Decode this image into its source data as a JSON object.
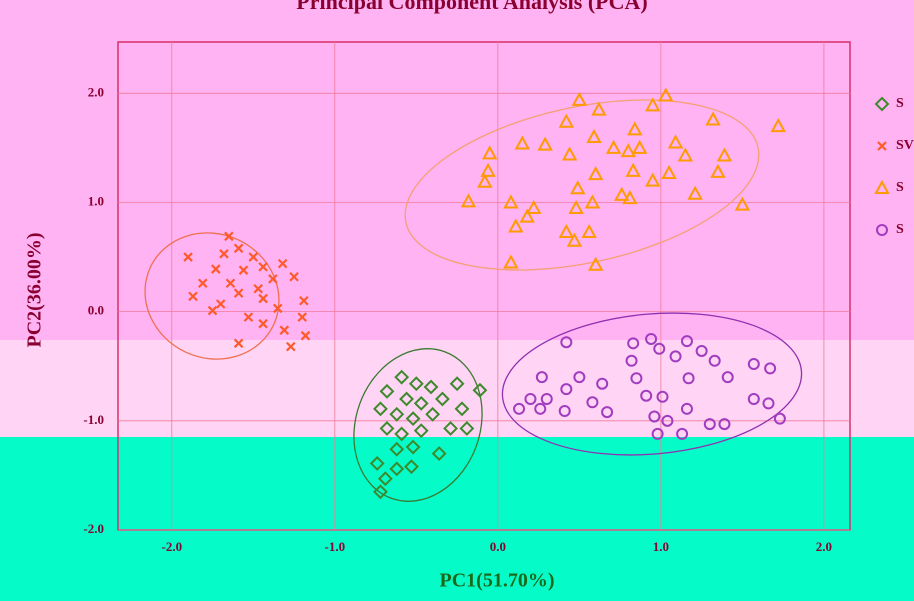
{
  "chart_data": {
    "type": "scatter",
    "title": "Principal Component Analysis (PCA)",
    "x_label": "PC1(51.70%)",
    "y_label": "PC2(36.00%)",
    "xlim": [
      -2.33,
      2.16
    ],
    "ylim": [
      -2.0,
      2.47
    ],
    "xticks": [
      {
        "value": -2,
        "label": "-2.0"
      },
      {
        "value": -1,
        "label": "-1.0"
      },
      {
        "value": 0,
        "label": "0.0"
      },
      {
        "value": 1,
        "label": "1.0"
      },
      {
        "value": 2,
        "label": "2.0"
      }
    ],
    "yticks": [
      {
        "value": -2,
        "label": "-2.0"
      },
      {
        "value": -1,
        "label": "-1.0"
      },
      {
        "value": 0,
        "label": "0.0"
      },
      {
        "value": 1,
        "label": "1.0"
      },
      {
        "value": 2,
        "label": "2.0"
      }
    ],
    "grid": true,
    "legend": "right",
    "series": [
      {
        "name": "S",
        "color": "#3d8a2c",
        "marker": "diamond",
        "x": [
          -0.59,
          -0.5,
          -0.41,
          -0.25,
          -0.11,
          -0.68,
          -0.56,
          -0.47,
          -0.34,
          -0.22,
          -0.72,
          -0.62,
          -0.52,
          -0.4,
          -0.68,
          -0.59,
          -0.47,
          -0.29,
          -0.62,
          -0.52,
          -0.36,
          -0.74,
          -0.62,
          -0.69,
          -0.53,
          -0.72,
          -0.19
        ],
        "values": [
          -0.6,
          -0.66,
          -0.69,
          -0.66,
          -0.72,
          -0.73,
          -0.8,
          -0.84,
          -0.8,
          -0.89,
          -0.89,
          -0.94,
          -0.98,
          -0.94,
          -1.07,
          -1.12,
          -1.09,
          -1.07,
          -1.26,
          -1.24,
          -1.3,
          -1.39,
          -1.44,
          -1.53,
          -1.42,
          -1.65,
          -1.07
        ]
      },
      {
        "name": "SV",
        "color": "#ff5a2a",
        "marker": "x",
        "x": [
          -1.65,
          -1.59,
          -1.68,
          -1.5,
          -1.9,
          -1.32,
          -1.44,
          -1.56,
          -1.73,
          -1.25,
          -1.38,
          -1.64,
          -1.47,
          -1.81,
          -1.87,
          -1.59,
          -1.44,
          -1.19,
          -1.7,
          -1.35,
          -1.53,
          -1.75,
          -1.2,
          -1.44,
          -1.31,
          -1.59,
          -1.27,
          -1.18
        ],
        "values": [
          0.69,
          0.58,
          0.53,
          0.5,
          0.5,
          0.44,
          0.41,
          0.38,
          0.39,
          0.32,
          0.3,
          0.26,
          0.21,
          0.26,
          0.14,
          0.17,
          0.12,
          0.1,
          0.07,
          0.03,
          -0.05,
          0.01,
          -0.05,
          -0.11,
          -0.17,
          -0.29,
          -0.32,
          -0.22
        ]
      },
      {
        "name": "S",
        "color": "#ff9a00",
        "marker": "triangle",
        "x": [
          0.5,
          0.62,
          1.03,
          0.95,
          0.42,
          0.84,
          1.32,
          1.72,
          0.59,
          0.15,
          0.29,
          0.71,
          1.09,
          0.87,
          0.44,
          0.8,
          1.15,
          1.39,
          -0.05,
          0.6,
          0.83,
          1.05,
          0.95,
          -0.06,
          1.35,
          -0.08,
          0.49,
          0.76,
          0.81,
          1.21,
          -0.18,
          0.08,
          0.22,
          0.58,
          0.48,
          1.5,
          0.18,
          0.11,
          0.42,
          0.47,
          0.56,
          0.08,
          0.6
        ],
        "values": [
          1.94,
          1.85,
          1.98,
          1.89,
          1.74,
          1.67,
          1.76,
          1.7,
          1.6,
          1.54,
          1.53,
          1.5,
          1.55,
          1.5,
          1.44,
          1.47,
          1.43,
          1.43,
          1.45,
          1.26,
          1.29,
          1.27,
          1.2,
          1.29,
          1.28,
          1.19,
          1.13,
          1.07,
          1.04,
          1.08,
          1.01,
          1.0,
          0.95,
          1.0,
          0.95,
          0.98,
          0.87,
          0.78,
          0.73,
          0.65,
          0.73,
          0.45,
          0.43
        ]
      },
      {
        "name": "S",
        "color": "#a03cc0",
        "marker": "circle",
        "x": [
          0.42,
          0.83,
          0.94,
          1.16,
          0.99,
          1.25,
          1.09,
          1.33,
          0.82,
          1.57,
          1.67,
          0.27,
          0.5,
          0.64,
          0.85,
          1.17,
          1.41,
          0.42,
          0.2,
          0.3,
          0.58,
          0.91,
          1.01,
          1.57,
          1.66,
          0.13,
          0.26,
          0.41,
          0.67,
          1.16,
          0.96,
          1.04,
          1.3,
          1.39,
          1.73,
          0.98,
          1.13
        ],
        "values": [
          -0.28,
          -0.29,
          -0.25,
          -0.27,
          -0.34,
          -0.36,
          -0.41,
          -0.45,
          -0.45,
          -0.48,
          -0.52,
          -0.6,
          -0.6,
          -0.66,
          -0.61,
          -0.61,
          -0.6,
          -0.71,
          -0.8,
          -0.8,
          -0.83,
          -0.77,
          -0.78,
          -0.8,
          -0.84,
          -0.89,
          -0.89,
          -0.91,
          -0.92,
          -0.89,
          -0.96,
          -1.0,
          -1.03,
          -1.03,
          -0.98,
          -1.12,
          -1.12
        ]
      }
    ]
  }
}
